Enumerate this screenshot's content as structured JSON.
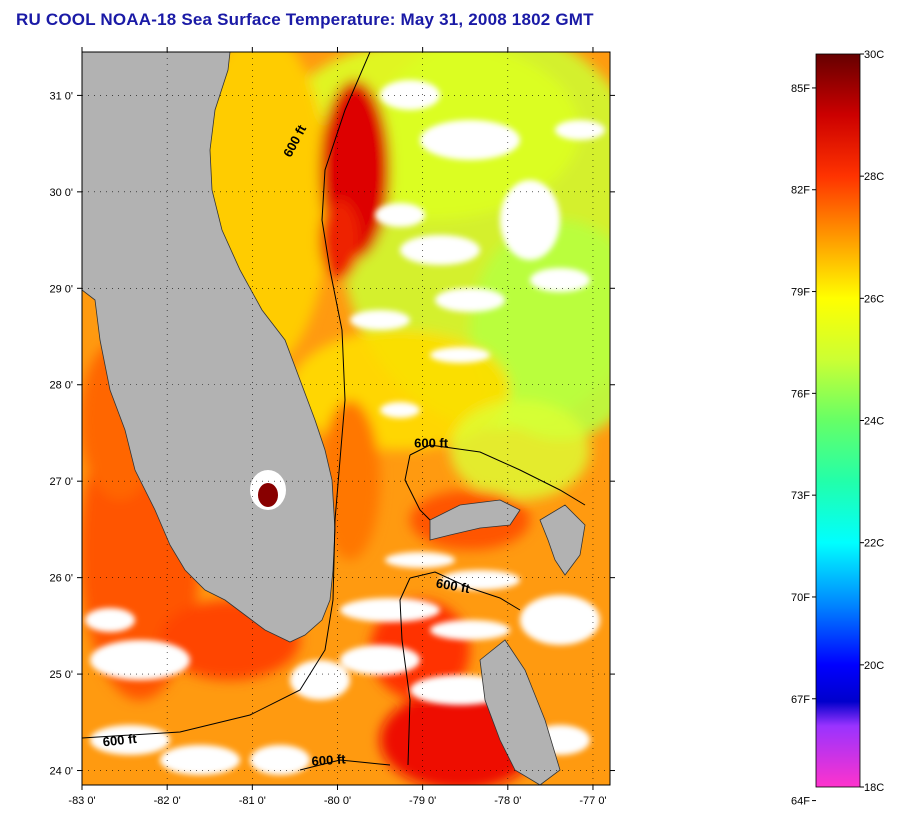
{
  "title": "RU COOL  NOAA-18  Sea Surface Temperature:  May 31, 2008 1802 GMT",
  "map": {
    "lon_range": [
      -83,
      -76.8
    ],
    "lat_range": [
      23.85,
      31.45
    ],
    "lon_ticks": [
      {
        "value": -83,
        "label": "-83 0'"
      },
      {
        "value": -82,
        "label": "-82 0'"
      },
      {
        "value": -81,
        "label": "-81 0'"
      },
      {
        "value": -80,
        "label": "-80 0'"
      },
      {
        "value": -79,
        "label": "-79 0'"
      },
      {
        "value": -78,
        "label": "-78 0'"
      },
      {
        "value": -77,
        "label": "-77 0'"
      }
    ],
    "lat_ticks": [
      {
        "value": 31,
        "label": "31 0'"
      },
      {
        "value": 30,
        "label": "30 0'"
      },
      {
        "value": 29,
        "label": "29 0'"
      },
      {
        "value": 28,
        "label": "28 0'"
      },
      {
        "value": 27,
        "label": "27 0'"
      },
      {
        "value": 26,
        "label": "26 0'"
      },
      {
        "value": 25,
        "label": "25 0'"
      },
      {
        "value": 24,
        "label": "24 0'"
      }
    ],
    "contour_labels": [
      {
        "text": "600 ft",
        "lon": -80.55,
        "lat": 30.35,
        "rotate": -62
      },
      {
        "text": "600 ft",
        "lon": -79.1,
        "lat": 27.35,
        "rotate": 0
      },
      {
        "text": "600 ft",
        "lon": -78.85,
        "lat": 25.9,
        "rotate": 10
      },
      {
        "text": "600 ft",
        "lon": -82.75,
        "lat": 24.25,
        "rotate": -6
      },
      {
        "text": "600 ft",
        "lon": -80.3,
        "lat": 24.05,
        "rotate": -4
      }
    ],
    "colors": {
      "land": "#b2b2b2",
      "cloud": "#ffffff",
      "grid": "#000000"
    }
  },
  "colorbar": {
    "stops": [
      {
        "value": 18,
        "color": "#ff33cc"
      },
      {
        "value": 19,
        "color": "#9933ff"
      },
      {
        "value": 19.4,
        "color": "#0000cc"
      },
      {
        "value": 20,
        "color": "#0000ff"
      },
      {
        "value": 21,
        "color": "#0088ff"
      },
      {
        "value": 22,
        "color": "#00ffff"
      },
      {
        "value": 23,
        "color": "#22ffaa"
      },
      {
        "value": 24,
        "color": "#66ff66"
      },
      {
        "value": 25,
        "color": "#ccff33"
      },
      {
        "value": 26,
        "color": "#ffff00"
      },
      {
        "value": 27,
        "color": "#ff9900"
      },
      {
        "value": 28,
        "color": "#ff3300"
      },
      {
        "value": 29,
        "color": "#cc0000"
      },
      {
        "value": 30,
        "color": "#660000"
      }
    ],
    "celsius_labels": [
      {
        "value": 30,
        "label": "30C"
      },
      {
        "value": 28,
        "label": "28C"
      },
      {
        "value": 26,
        "label": "26C"
      },
      {
        "value": 24,
        "label": "24C"
      },
      {
        "value": 22,
        "label": "22C"
      },
      {
        "value": 20,
        "label": "20C"
      },
      {
        "value": 18,
        "label": "18C"
      }
    ],
    "fahrenheit_labels": [
      {
        "value": 85,
        "label": "85F"
      },
      {
        "value": 82,
        "label": "82F"
      },
      {
        "value": 79,
        "label": "79F"
      },
      {
        "value": 76,
        "label": "76F"
      },
      {
        "value": 73,
        "label": "73F"
      },
      {
        "value": 70,
        "label": "70F"
      },
      {
        "value": 67,
        "label": "67F"
      },
      {
        "value": 64,
        "label": "64F"
      }
    ]
  }
}
